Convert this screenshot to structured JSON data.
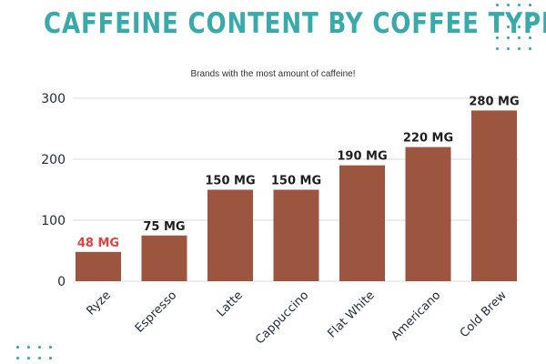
{
  "title": "CAFFEINE CONTENT BY COFFEE TYPE",
  "subtitle": "Brands with the most amount of caffeine!",
  "colors": {
    "title": "#3aa9a9",
    "bar": "#9c5640",
    "highlight_label": "#e0433b",
    "label": "#1e1e1e",
    "axis_text": "#1f2b3a",
    "grid": "#d9d9d9"
  },
  "chart_data": {
    "type": "bar",
    "title": "CAFFEINE CONTENT BY COFFEE TYPE",
    "subtitle": "Brands with the most amount of caffeine!",
    "categories": [
      "Ryze",
      "Espresso",
      "Latte",
      "Cappuccino",
      "Flat White",
      "Americano",
      "Cold Brew"
    ],
    "values": [
      48,
      75,
      150,
      150,
      190,
      220,
      280
    ],
    "data_labels": [
      "48 MG",
      "75 MG",
      "150 MG",
      "150 MG",
      "190 MG",
      "220 MG",
      "280 MG"
    ],
    "highlighted_category": "Ryze",
    "ylim": [
      0,
      300
    ],
    "yticks": [
      0,
      100,
      200,
      300
    ],
    "xlabel": "",
    "ylabel": "",
    "grid": true
  }
}
